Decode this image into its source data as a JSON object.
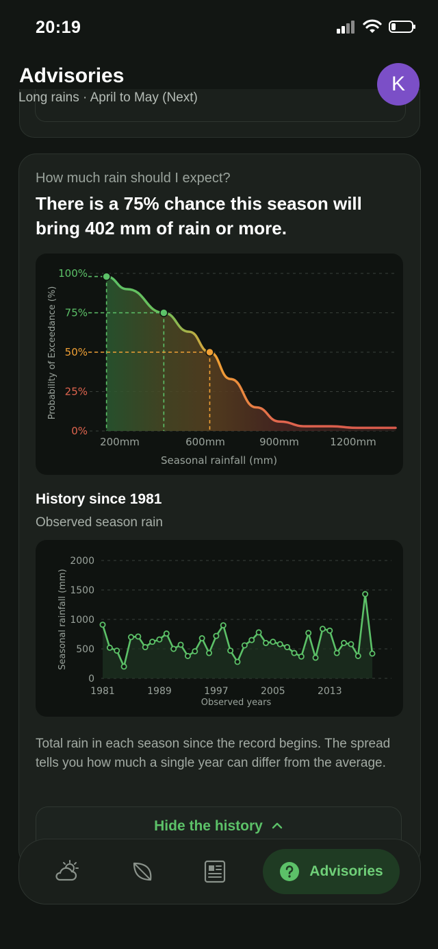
{
  "status_bar": {
    "time": "20:19"
  },
  "header": {
    "title": "Advisories",
    "subtitle": "Long rains · April to May (Next)",
    "avatar_initial": "K"
  },
  "card": {
    "question": "How much rain should I expect?",
    "answer": "There is a 75% chance this season will bring 402 mm of rain or more.",
    "history_title": "History since 1981",
    "history_subtitle": "Observed season rain",
    "description": "Total rain in each season since the record begins. The spread tells you how much a single year can differ from the average.",
    "hide_button_label": "Hide the history"
  },
  "nav": {
    "items": [
      {
        "icon": "weather-icon"
      },
      {
        "icon": "leaf-icon"
      },
      {
        "icon": "news-icon"
      },
      {
        "icon": "help-circle-icon",
        "label": "Advisories"
      }
    ],
    "active_index": 3
  },
  "colors": {
    "accent_green": "#5cc168",
    "orange": "#f0a035",
    "red": "#e0654f",
    "avatar": "#7b4fc7"
  },
  "chart_data": [
    {
      "type": "line",
      "chart": "exceedance",
      "xlabel": "Seasonal rainfall (mm)",
      "ylabel": "Probability of Exceedance (%)",
      "x_ticks": [
        "200mm",
        "600mm",
        "900mm",
        "1200mm"
      ],
      "y_ticks": [
        "0%",
        "25%",
        "50%",
        "75%",
        "100%"
      ],
      "xlim": [
        120,
        1300
      ],
      "ylim": [
        0,
        100
      ],
      "curve": {
        "x": [
          180,
          260,
          402,
          500,
          580,
          660,
          760,
          850,
          950,
          1050,
          1150,
          1300
        ],
        "y": [
          98,
          90,
          75,
          63,
          50,
          33,
          15,
          6,
          3,
          3,
          2,
          2
        ]
      },
      "markers": [
        {
          "x": 180,
          "y": 98,
          "color": "#5cc168"
        },
        {
          "x": 402,
          "y": 75,
          "color": "#5cc168"
        },
        {
          "x": 580,
          "y": 50,
          "color": "#f0a035"
        }
      ]
    },
    {
      "type": "line",
      "chart": "history",
      "xlabel": "Observed years",
      "ylabel": "Seasonal rainfall (mm)",
      "x_ticks": [
        "1981",
        "1989",
        "1997",
        "2005",
        "2013"
      ],
      "y_ticks": [
        "0",
        "500",
        "1000",
        "1500",
        "2000"
      ],
      "ylim": [
        0,
        2000
      ],
      "series": [
        {
          "x": [
            1981,
            1982,
            1983,
            1984,
            1985,
            1986,
            1987,
            1988,
            1989,
            1990,
            1991,
            1992,
            1993,
            1994,
            1995,
            1996,
            1997,
            1998,
            1999,
            2000,
            2001,
            2002,
            2003,
            2004,
            2005,
            2006,
            2007,
            2008,
            2009,
            2010,
            2011,
            2012,
            2013,
            2014,
            2015,
            2016,
            2017,
            2018,
            2019
          ],
          "values": [
            910,
            520,
            470,
            200,
            700,
            710,
            530,
            620,
            660,
            760,
            500,
            570,
            380,
            460,
            680,
            430,
            720,
            900,
            470,
            280,
            560,
            650,
            780,
            600,
            620,
            580,
            530,
            430,
            370,
            770,
            350,
            840,
            810,
            430,
            600,
            580,
            380,
            1430,
            420
          ]
        }
      ]
    }
  ]
}
